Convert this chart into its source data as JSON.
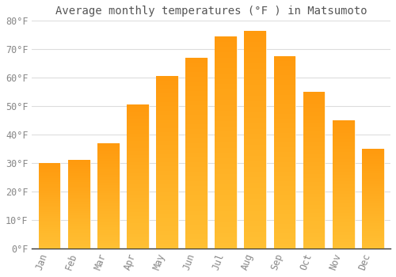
{
  "title": "Average monthly temperatures (°F ) in Matsumoto",
  "months": [
    "Jan",
    "Feb",
    "Mar",
    "Apr",
    "May",
    "Jun",
    "Jul",
    "Aug",
    "Sep",
    "Oct",
    "Nov",
    "Dec"
  ],
  "values": [
    30,
    31,
    37,
    50.5,
    60.5,
    67,
    74.5,
    76.5,
    67.5,
    55,
    45,
    35
  ],
  "bar_color_top": "#FFAA00",
  "bar_color_bottom": "#FFD060",
  "background_color": "#FFFFFF",
  "grid_color": "#DDDDDD",
  "ylim": [
    0,
    80
  ],
  "yticks": [
    0,
    10,
    20,
    30,
    40,
    50,
    60,
    70,
    80
  ],
  "title_fontsize": 10,
  "tick_fontsize": 8.5,
  "title_color": "#555555",
  "tick_color": "#888888"
}
